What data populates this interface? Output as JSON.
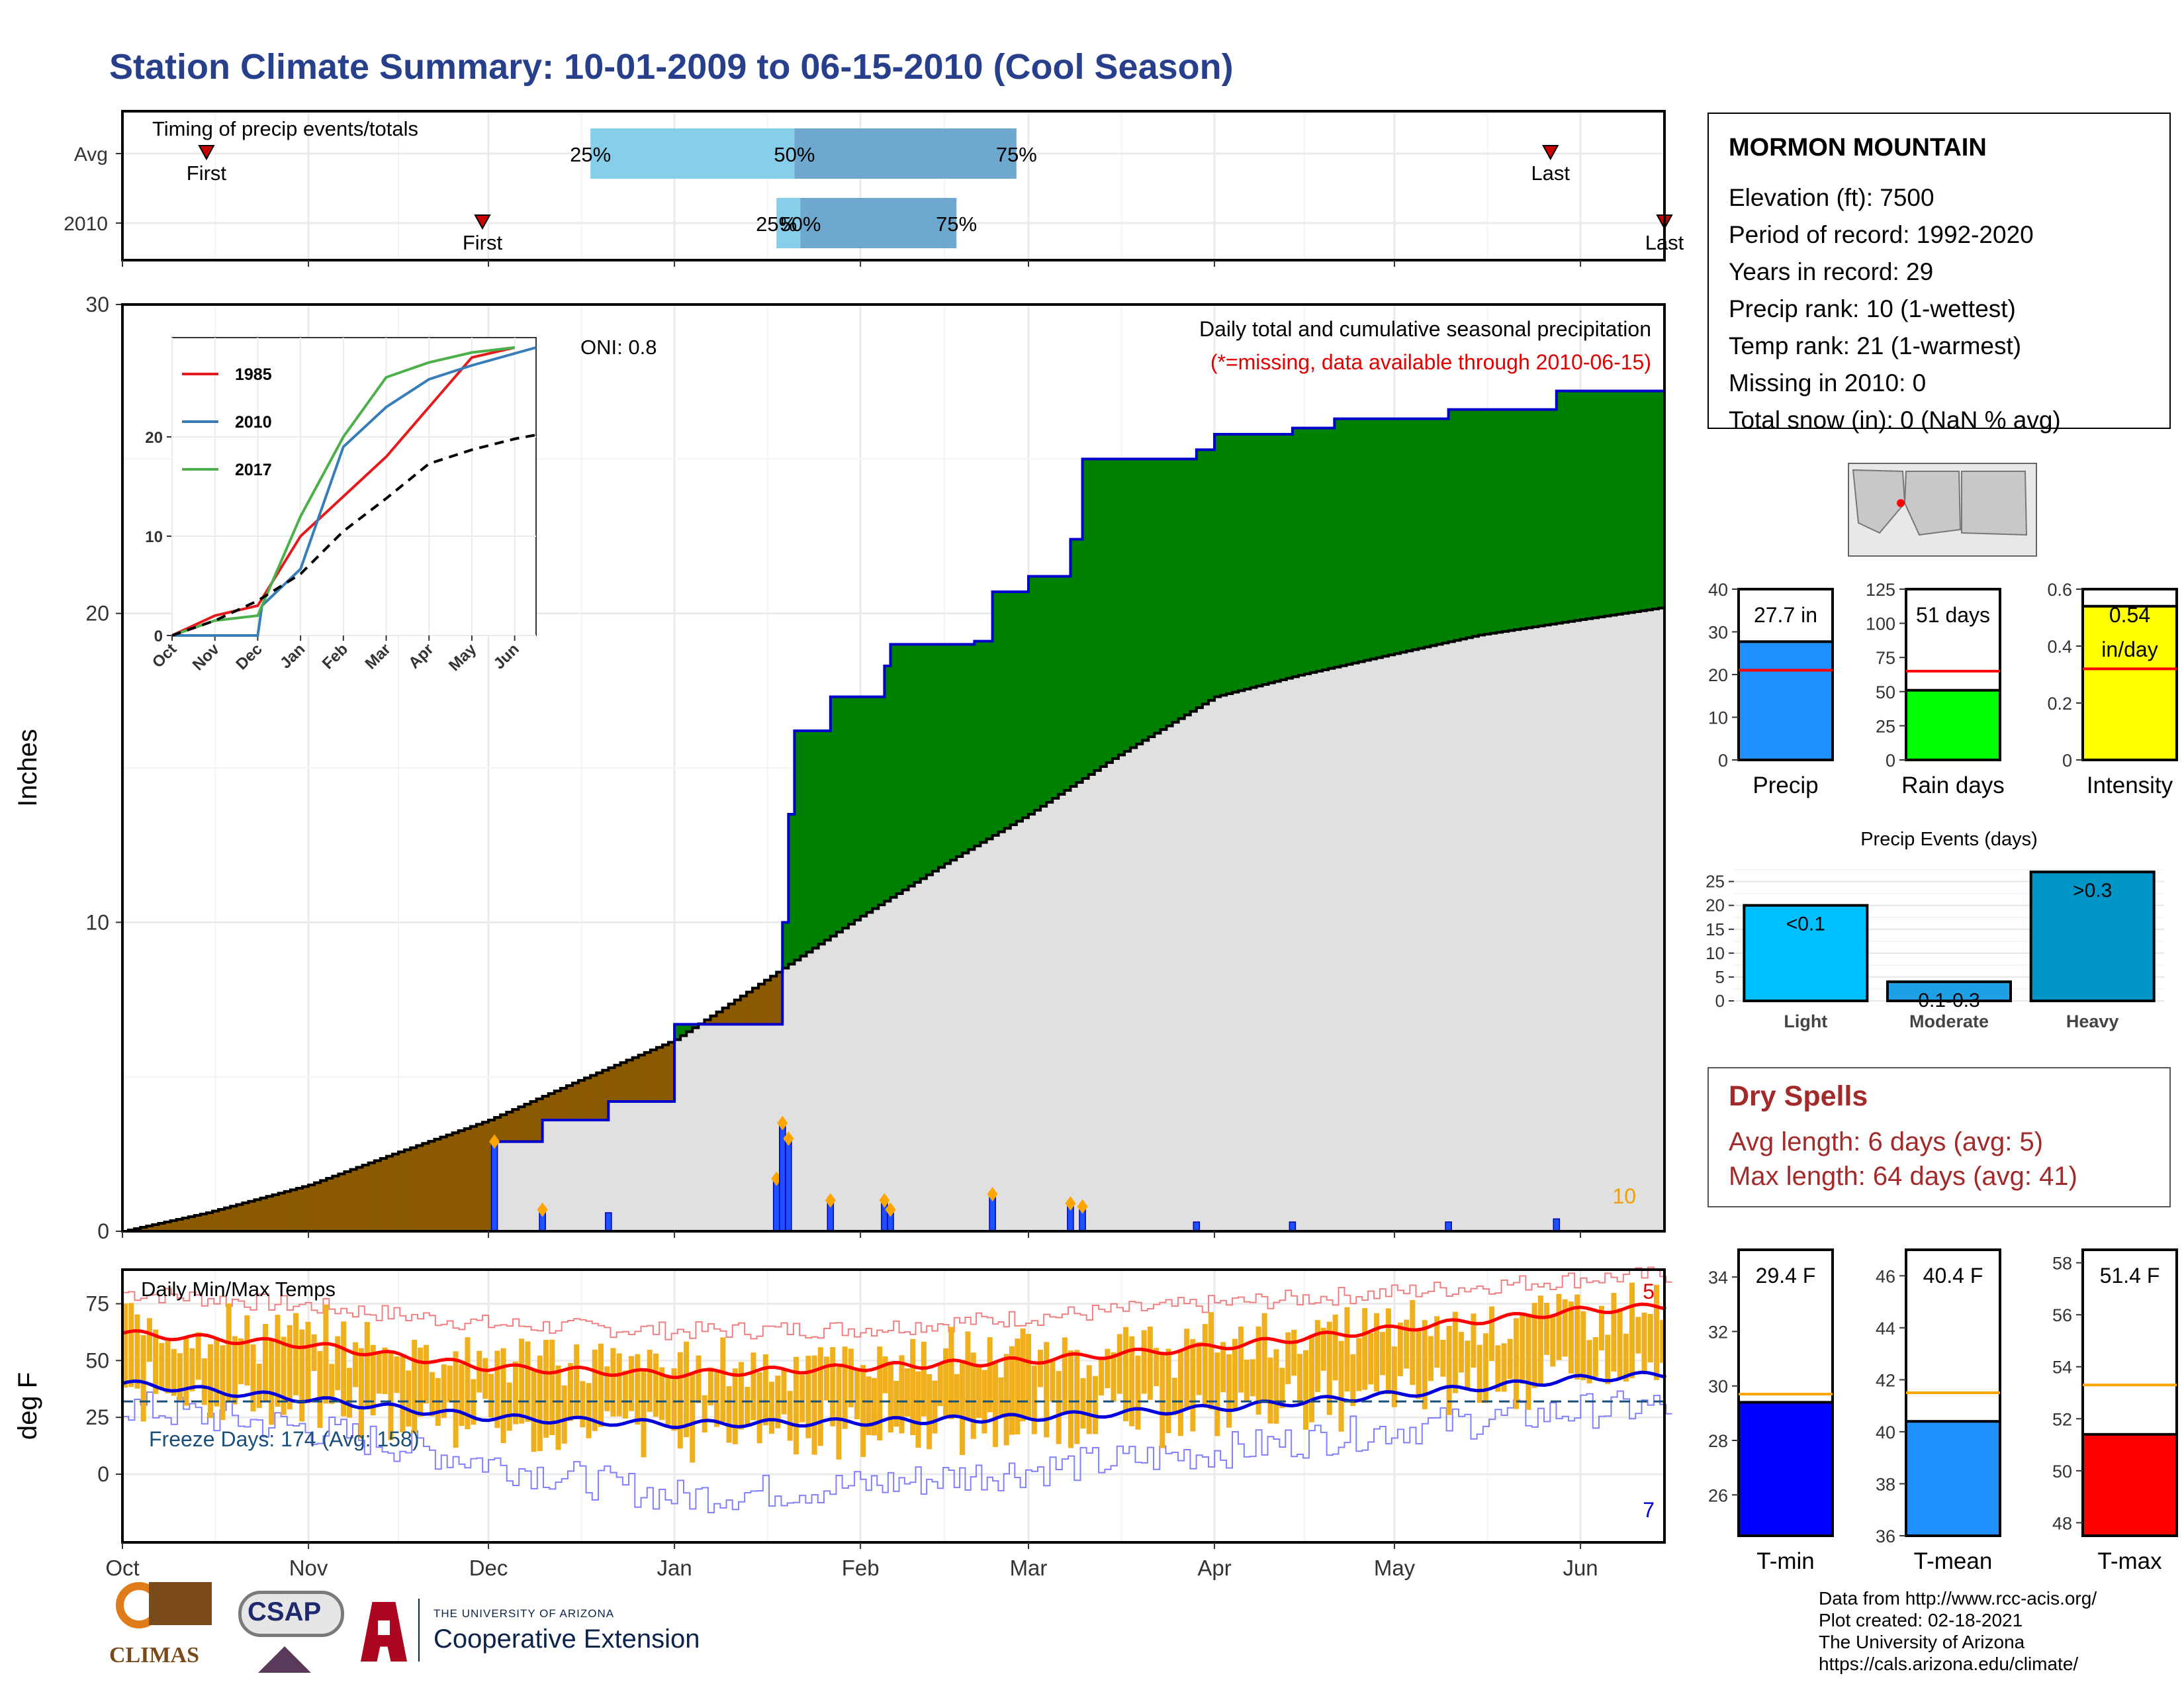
{
  "title": "Station Climate Summary: 10-01-2009 to 06-15-2010 (Cool Season)",
  "station": {
    "name": "MORMON MOUNTAIN",
    "lines": [
      "Elevation (ft): 7500",
      "Period of record: 1992-2020",
      "Years in record: 29",
      "Precip rank: 10 (1-wettest)",
      "Temp rank: 21 (1-warmest)",
      "Missing in 2010: 0",
      "Total snow (in): 0 (NaN % avg)"
    ]
  },
  "dry_spells": {
    "heading": "Dry Spells",
    "lines": [
      "Avg length: 6 days (avg: 5)",
      "Max length: 64 days (avg: 41)"
    ]
  },
  "footer": [
    "Data from http://www.rcc-acis.org/",
    "Plot created: 02-18-2021",
    "The University of Arizona",
    "https://cals.arizona.edu/climate/"
  ],
  "logos": {
    "climas": "CLIMAS",
    "csap": "CSAP",
    "ua_small": "THE UNIVERSITY OF ARIZONA",
    "ua_big": "Cooperative Extension"
  },
  "chart_data": [
    {
      "id": "timing",
      "type": "bar",
      "title": "Timing of precip events/totals",
      "rows": [
        "Avg",
        "2010"
      ],
      "quantile_labels": [
        "25%",
        "50%",
        "75%"
      ],
      "avg": {
        "first": "2009-10-15",
        "p25": "2009-12-18",
        "p50": "2010-01-21",
        "p75": "2010-02-27",
        "last": "2010-05-27"
      },
      "y2010": {
        "first": "2009-11-30",
        "p25": "2010-01-18",
        "p50": "2010-01-22",
        "p75": "2010-02-17",
        "last": "2010-06-15"
      },
      "event_labels": {
        "first": "First",
        "last": "Last"
      },
      "colors": {
        "lower": "#87ceeb",
        "upper": "#6fa8ce",
        "marker": "#cc0000"
      }
    },
    {
      "id": "precip",
      "type": "area",
      "title": "Daily total and cumulative seasonal precipitation",
      "subtitle": "(*=missing, data available through 2010-06-15)",
      "ylabel": "Inches",
      "ylim": [
        0,
        30
      ],
      "yticks": [
        0,
        10,
        20,
        30
      ],
      "oni": "ONI: 0.8",
      "corner_label": "10",
      "avg_cumulative": [
        [
          "2009-10-01",
          0
        ],
        [
          "2009-10-15",
          0.6
        ],
        [
          "2009-11-01",
          1.5
        ],
        [
          "2009-11-15",
          2.5
        ],
        [
          "2009-12-01",
          3.6
        ],
        [
          "2009-12-15",
          4.8
        ],
        [
          "2010-01-01",
          6.2
        ],
        [
          "2010-01-15",
          8.0
        ],
        [
          "2010-02-01",
          10.2
        ],
        [
          "2010-02-15",
          11.9
        ],
        [
          "2010-03-01",
          13.5
        ],
        [
          "2010-03-15",
          15.3
        ],
        [
          "2010-04-01",
          17.3
        ],
        [
          "2010-04-15",
          18.0
        ],
        [
          "2010-05-01",
          18.7
        ],
        [
          "2010-05-15",
          19.3
        ],
        [
          "2010-06-01",
          19.8
        ],
        [
          "2010-06-15",
          20.2
        ]
      ],
      "cumulative_2010": [
        [
          "2009-10-01",
          0
        ],
        [
          "2009-12-01",
          0
        ],
        [
          "2009-12-02",
          2.9
        ],
        [
          "2009-12-10",
          3.6
        ],
        [
          "2009-12-21",
          4.2
        ],
        [
          "2010-01-01",
          6.7
        ],
        [
          "2010-01-18",
          6.7
        ],
        [
          "2010-01-19",
          10.0
        ],
        [
          "2010-01-20",
          13.5
        ],
        [
          "2010-01-21",
          16.2
        ],
        [
          "2010-01-27",
          17.3
        ],
        [
          "2010-02-05",
          18.3
        ],
        [
          "2010-02-06",
          19.0
        ],
        [
          "2010-02-20",
          19.1
        ],
        [
          "2010-02-23",
          20.7
        ],
        [
          "2010-03-01",
          21.2
        ],
        [
          "2010-03-08",
          22.4
        ],
        [
          "2010-03-10",
          25.0
        ],
        [
          "2010-03-29",
          25.3
        ],
        [
          "2010-04-01",
          25.8
        ],
        [
          "2010-04-14",
          26.0
        ],
        [
          "2010-04-21",
          26.3
        ],
        [
          "2010-05-10",
          26.6
        ],
        [
          "2010-05-28",
          27.2
        ],
        [
          "2010-06-15",
          27.7
        ]
      ],
      "daily_bars": [
        [
          "2009-12-02",
          2.9
        ],
        [
          "2009-12-10",
          0.7
        ],
        [
          "2009-12-21",
          0.6
        ],
        [
          "2010-01-18",
          1.7
        ],
        [
          "2010-01-19",
          3.5
        ],
        [
          "2010-01-20",
          3.0
        ],
        [
          "2010-01-27",
          1.0
        ],
        [
          "2010-02-05",
          1.0
        ],
        [
          "2010-02-06",
          0.7
        ],
        [
          "2010-02-23",
          1.2
        ],
        [
          "2010-03-08",
          0.9
        ],
        [
          "2010-03-10",
          0.8
        ],
        [
          "2010-03-29",
          0.3
        ],
        [
          "2010-04-14",
          0.3
        ],
        [
          "2010-05-10",
          0.3
        ],
        [
          "2010-05-28",
          0.4
        ]
      ],
      "colors": {
        "deficit": "#8b5a00",
        "surplus": "#008000",
        "avg_fill": "#e0e0e0",
        "line_2010": "#0000cc",
        "bars": "#1e50ff",
        "dots": "#ffa500"
      }
    },
    {
      "id": "inset",
      "type": "line",
      "ylim": [
        0,
        30
      ],
      "yticks": [
        0,
        10,
        20
      ],
      "months": [
        "Oct",
        "Nov",
        "Dec",
        "Jan",
        "Feb",
        "Mar",
        "Apr",
        "May",
        "Jun"
      ],
      "series": [
        {
          "name": "1985",
          "color": "#e41a1c",
          "points": [
            [
              0,
              0
            ],
            [
              1,
              2
            ],
            [
              2,
              3
            ],
            [
              3,
              10
            ],
            [
              4,
              14
            ],
            [
              5,
              18
            ],
            [
              6,
              23
            ],
            [
              7,
              28
            ],
            [
              8,
              29
            ]
          ]
        },
        {
          "name": "2010",
          "color": "#377eb8",
          "points": [
            [
              0,
              0
            ],
            [
              2,
              0
            ],
            [
              2.1,
              3
            ],
            [
              3,
              6.7
            ],
            [
              4,
              19
            ],
            [
              5,
              23
            ],
            [
              6,
              25.8
            ],
            [
              7,
              27.2
            ],
            [
              8.5,
              29
            ]
          ]
        },
        {
          "name": "2017",
          "color": "#4daf4a",
          "points": [
            [
              0,
              0
            ],
            [
              1,
              1.5
            ],
            [
              2,
              2
            ],
            [
              3,
              12
            ],
            [
              4,
              20
            ],
            [
              5,
              26
            ],
            [
              6,
              27.5
            ],
            [
              7,
              28.5
            ],
            [
              8,
              29
            ]
          ]
        }
      ],
      "avg_points": [
        [
          0,
          0
        ],
        [
          1,
          1.5
        ],
        [
          2,
          3.5
        ],
        [
          3,
          6.2
        ],
        [
          4,
          10.5
        ],
        [
          5,
          13.8
        ],
        [
          6,
          17.3
        ],
        [
          7,
          18.7
        ],
        [
          8,
          19.8
        ],
        [
          8.5,
          20.2
        ]
      ]
    },
    {
      "id": "temps",
      "type": "bar",
      "title": "Daily Min/Max Temps",
      "ylabel": "deg F",
      "ylim": [
        -30,
        90
      ],
      "yticks": [
        0,
        25,
        50,
        75
      ],
      "months": [
        "Oct",
        "Nov",
        "Dec",
        "Jan",
        "Feb",
        "Mar",
        "Apr",
        "May",
        "Jun"
      ],
      "freeze_text": "Freeze Days: 174 (Avg: 158)",
      "freeze_line": 32,
      "record_high_count": "5",
      "record_low_count": "7",
      "avg_max": [
        [
          0,
          62
        ],
        [
          1,
          57
        ],
        [
          2,
          47
        ],
        [
          3,
          44
        ],
        [
          4,
          47
        ],
        [
          5,
          50
        ],
        [
          6,
          56
        ],
        [
          7,
          64
        ],
        [
          8,
          72
        ],
        [
          8.5,
          74
        ]
      ],
      "avg_min": [
        [
          0,
          40
        ],
        [
          1,
          33
        ],
        [
          2,
          25
        ],
        [
          3,
          22
        ],
        [
          4,
          23
        ],
        [
          5,
          25
        ],
        [
          6,
          29
        ],
        [
          7,
          35
        ],
        [
          8,
          42
        ],
        [
          8.5,
          44
        ]
      ],
      "rec_max": [
        [
          0,
          80
        ],
        [
          1,
          74
        ],
        [
          2,
          66
        ],
        [
          3,
          63
        ],
        [
          4,
          64
        ],
        [
          5,
          69
        ],
        [
          6,
          75
        ],
        [
          7,
          80
        ],
        [
          8,
          86
        ],
        [
          8.5,
          88
        ]
      ],
      "rec_min": [
        [
          0,
          30
        ],
        [
          1,
          20
        ],
        [
          2,
          5
        ],
        [
          3,
          -10
        ],
        [
          4,
          -5
        ],
        [
          5,
          2
        ],
        [
          6,
          10
        ],
        [
          7,
          20
        ],
        [
          8,
          28
        ],
        [
          8.5,
          30
        ]
      ],
      "colors": {
        "bars": "#f0b01e",
        "max": "#ff0000",
        "min": "#0000dd",
        "rec_max": "#f08080",
        "rec_min": "#8080ff",
        "freeze": "#1a4f7a"
      }
    },
    {
      "id": "totals",
      "type": "bar",
      "panels": [
        {
          "name": "Precip",
          "value": 27.7,
          "avg": 21,
          "label": "27.7 in",
          "ylim": [
            0,
            40
          ],
          "yticks": [
            0,
            10,
            20,
            30,
            40
          ],
          "color": "#1e90ff"
        },
        {
          "name": "Rain days",
          "value": 51,
          "avg": 65,
          "label": "51 days",
          "ylim": [
            0,
            125
          ],
          "yticks": [
            0,
            25,
            50,
            75,
            100,
            125
          ],
          "color": "#00ff00"
        },
        {
          "name": "Intensity",
          "value": 0.54,
          "avg": 0.32,
          "label": "0.54",
          "label2": "in/day",
          "ylim": [
            0,
            0.6
          ],
          "yticks": [
            0.0,
            0.2,
            0.4,
            0.6
          ],
          "color": "#ffff00"
        }
      ]
    },
    {
      "id": "events",
      "type": "bar",
      "title": "Precip Events (days)",
      "categories": [
        "Light",
        "Moderate",
        "Heavy"
      ],
      "labels": [
        "<0.1",
        "0.1-0.3",
        ">0.3"
      ],
      "values": [
        20,
        4,
        27
      ],
      "ylim": [
        0,
        28
      ],
      "yticks": [
        0,
        5,
        10,
        15,
        20,
        25
      ],
      "colors": [
        "#00bfff",
        "#1ea0e6",
        "#0096c8"
      ]
    },
    {
      "id": "temp_totals",
      "type": "bar",
      "panels": [
        {
          "name": "T-min",
          "value": 29.4,
          "avg": 29.7,
          "label": "29.4 F",
          "ylim": [
            24.5,
            35
          ],
          "yticks": [
            26,
            28,
            30,
            32,
            34
          ],
          "color": "#0000ff"
        },
        {
          "name": "T-mean",
          "value": 40.4,
          "avg": 41.5,
          "label": "40.4 F",
          "ylim": [
            36,
            47
          ],
          "yticks": [
            36,
            38,
            40,
            42,
            44,
            46
          ],
          "color": "#1e90ff"
        },
        {
          "name": "T-max",
          "value": 51.4,
          "avg": 53.3,
          "label": "51.4 F",
          "ylim": [
            47.5,
            58.5
          ],
          "yticks": [
            48,
            50,
            52,
            54,
            56,
            58
          ],
          "color": "#ff0000"
        }
      ]
    }
  ]
}
